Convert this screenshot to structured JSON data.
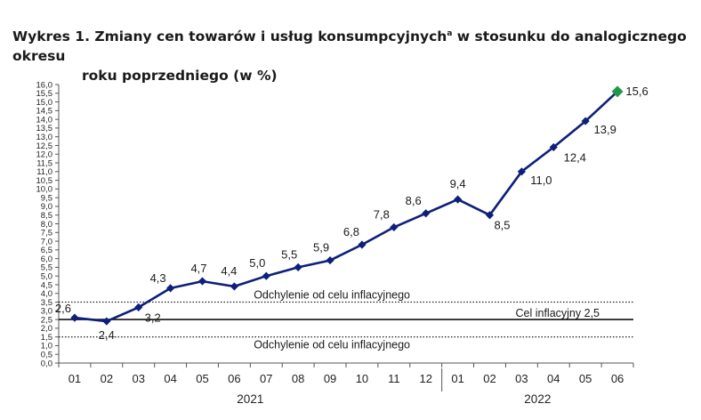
{
  "chart_data": {
    "type": "line",
    "title_main": "Wykres 1. Zmiany cen towarów i usług konsumpcyjnych",
    "title_sup": "a",
    "title_rest": " w stosunku do analogicznego okresu",
    "title_line2": "roku poprzedniego (w %)",
    "categories": [
      "01",
      "02",
      "03",
      "04",
      "05",
      "06",
      "07",
      "08",
      "09",
      "10",
      "11",
      "12",
      "01",
      "02",
      "03",
      "04",
      "05",
      "06"
    ],
    "year_labels": [
      "2021",
      "2022"
    ],
    "year_spans": [
      [
        0,
        11
      ],
      [
        12,
        17
      ]
    ],
    "values": [
      2.6,
      2.4,
      3.2,
      4.3,
      4.7,
      4.4,
      5.0,
      5.5,
      5.9,
      6.8,
      7.8,
      8.6,
      9.4,
      8.5,
      11.0,
      12.4,
      13.9,
      15.6
    ],
    "data_labels": [
      "2,6",
      "2,4",
      "3,2",
      "4,3",
      "4,7",
      "4,4",
      "5,0",
      "5,5",
      "5,9",
      "6,8",
      "7,8",
      "8,6",
      "9,4",
      "8,5",
      "11,0",
      "12,4",
      "13,9",
      "15,6"
    ],
    "ylim": [
      0,
      16
    ],
    "ytick_step": 0.5,
    "target_value": 2.5,
    "target_label": "Cel inflacyjny 2,5",
    "band_upper": 3.5,
    "band_lower": 1.5,
    "band_label_upper": "Odchylenie od celu inflacyjnego",
    "band_label_lower": "Odchylenie od celu inflacyjnego",
    "line_color": "#0d1f7a",
    "last_marker_color": "#1f9a4a",
    "grid": false
  }
}
